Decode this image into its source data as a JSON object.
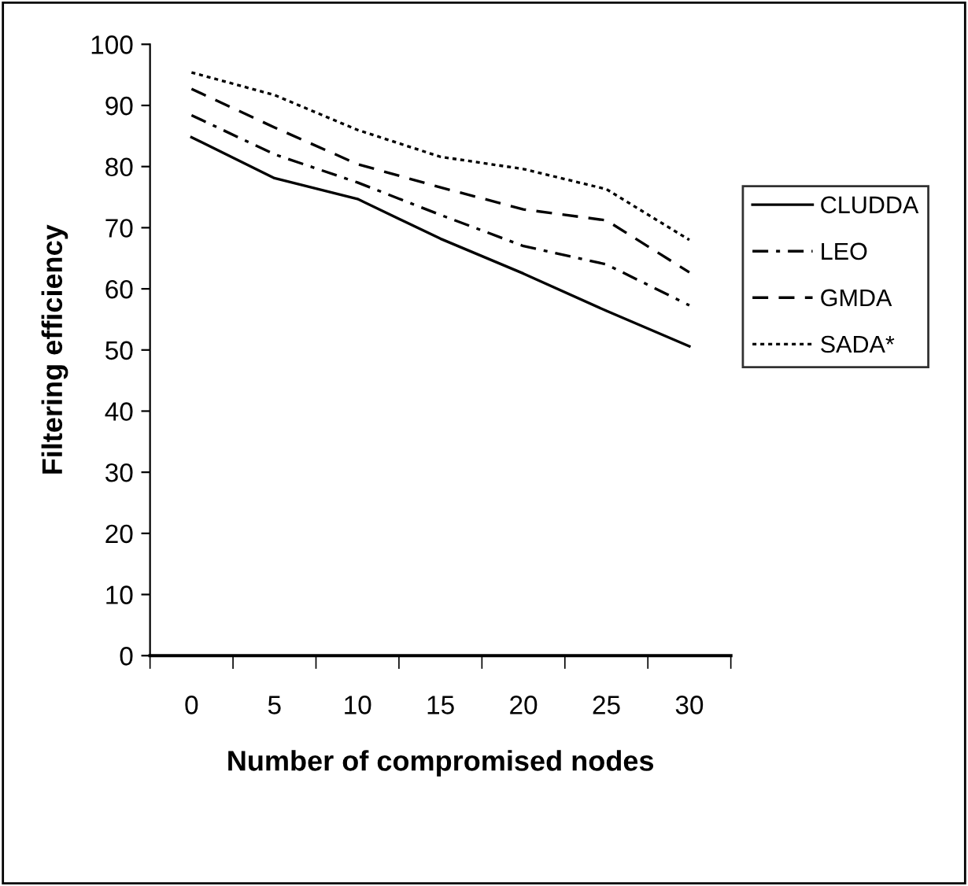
{
  "chart_data": {
    "type": "line",
    "xlabel": "Number of compromised nodes",
    "ylabel": "Filtering efficiency",
    "categories": [
      "0",
      "5",
      "10",
      "15",
      "20",
      "25",
      "30"
    ],
    "ylim": [
      0,
      100
    ],
    "yticks": [
      0,
      10,
      20,
      30,
      40,
      50,
      60,
      70,
      80,
      90,
      100
    ],
    "grid": false,
    "legend": "right",
    "marker": "none",
    "series": [
      {
        "name": "CLUDDA",
        "color": "#000000",
        "line_style": "solid",
        "values": [
          84.8,
          78.1,
          74.7,
          68.2,
          62.5,
          56.4,
          50.6
        ]
      },
      {
        "name": "LEO",
        "color": "#000000",
        "line_style": "dashdot",
        "values": [
          88.4,
          82.0,
          77.4,
          72.1,
          67.0,
          64.0,
          57.3
        ]
      },
      {
        "name": "GMDA",
        "color": "#000000",
        "line_style": "dashed",
        "values": [
          92.7,
          86.4,
          80.4,
          76.6,
          73.0,
          71.2,
          62.7
        ]
      },
      {
        "name": "SADA*",
        "color": "#000000",
        "line_style": "dotted",
        "values": [
          95.4,
          91.7,
          86.0,
          81.6,
          79.6,
          76.3,
          68.0
        ]
      }
    ]
  }
}
